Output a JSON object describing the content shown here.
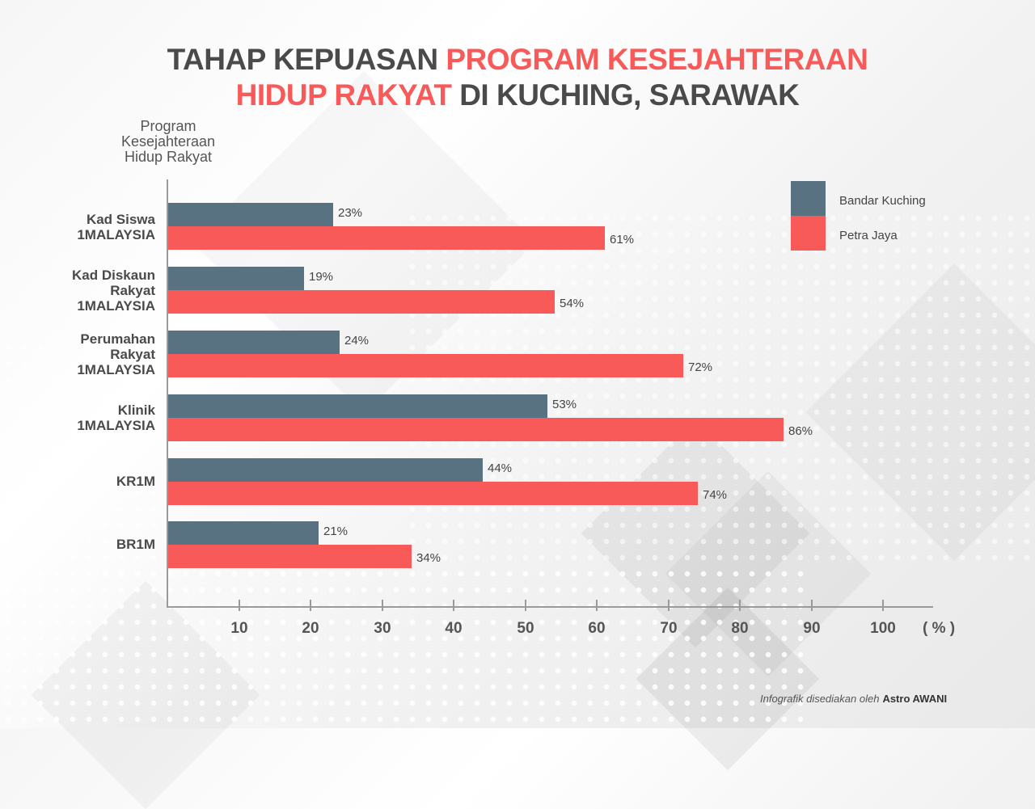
{
  "title": {
    "part1": "TAHAP KEPUASAN ",
    "part2_accent": "PROGRAM KESEJAHTERAAN",
    "part3_accent": "HIDUP RAKYAT",
    "part4": " DI KUCHING, SARAWAK"
  },
  "y_axis_title": [
    "Program",
    "Kesejahteraan",
    "Hidup Rakyat"
  ],
  "legend": [
    {
      "label": "Bandar Kuching",
      "color": "#587282"
    },
    {
      "label": "Petra Jaya",
      "color": "#f85a59"
    }
  ],
  "x_ticks": [
    "10",
    "20",
    "30",
    "40",
    "50",
    "60",
    "70",
    "80",
    "90",
    "100"
  ],
  "x_unit": "( % )",
  "credit": {
    "prefix": "Infografik disediakan oleh",
    "brand": "Astro AWANI"
  },
  "chart_data": {
    "type": "bar",
    "orientation": "horizontal",
    "title": "TAHAP KEPUASAN PROGRAM KESEJAHTERAAN HIDUP RAKYAT DI KUCHING, SARAWAK",
    "xlabel": "( % )",
    "ylabel": "Program Kesejahteraan Hidup Rakyat",
    "xlim": [
      0,
      100
    ],
    "x_ticks": [
      10,
      20,
      30,
      40,
      50,
      60,
      70,
      80,
      90,
      100
    ],
    "grid": false,
    "legend_position": "top-right",
    "categories": [
      "Kad Siswa 1MALAYSIA",
      "Kad Diskaun Rakyat 1MALAYSIA",
      "Perumahan Rakyat 1MALAYSIA",
      "Klinik 1MALAYSIA",
      "KR1M",
      "BR1M"
    ],
    "series": [
      {
        "name": "Bandar Kuching",
        "color": "#587282",
        "values": [
          23,
          19,
          24,
          53,
          44,
          21
        ]
      },
      {
        "name": "Petra Jaya",
        "color": "#f85a59",
        "values": [
          61,
          54,
          72,
          86,
          74,
          34
        ]
      }
    ],
    "data_labels": {
      "Bandar Kuching": [
        "23%",
        "19%",
        "24%",
        "53%",
        "44%",
        "21%"
      ],
      "Petra Jaya": [
        "61%",
        "54%",
        "72%",
        "86%",
        "74%",
        "34%"
      ]
    }
  },
  "category_labels": [
    [
      "Kad Siswa",
      "1MALAYSIA"
    ],
    [
      "Kad Diskaun",
      "Rakyat",
      "1MALAYSIA"
    ],
    [
      "Perumahan",
      "Rakyat",
      "1MALAYSIA"
    ],
    [
      "Klinik",
      "1MALAYSIA"
    ],
    [
      "KR1M"
    ],
    [
      "BR1M"
    ]
  ]
}
